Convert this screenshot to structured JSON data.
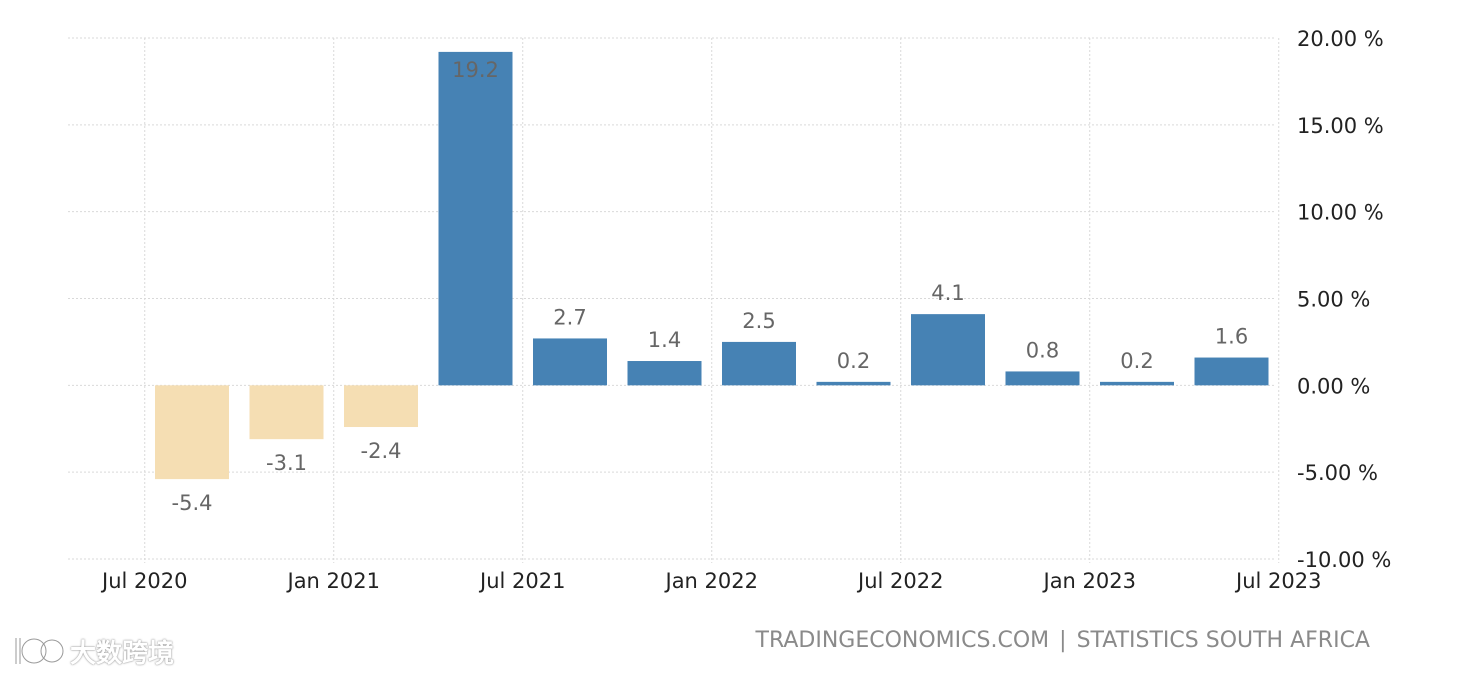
{
  "colors": {
    "positive": "#4682b4",
    "negative": "#f5deb3",
    "grid": "#d9d9d9",
    "label": "#666666",
    "axis_text": "#222222",
    "source_text": "#8a8a8a"
  },
  "chart_data": {
    "type": "bar",
    "categories": [
      "Q3 2020",
      "Q4 2020",
      "Q1 2021",
      "Q2 2021",
      "Q3 2021",
      "Q4 2021",
      "Q1 2022",
      "Q2 2022",
      "Q3 2022",
      "Q4 2022",
      "Q1 2023",
      "Q2 2023"
    ],
    "values": [
      -5.4,
      -3.1,
      -2.4,
      19.2,
      2.7,
      1.4,
      2.5,
      0.2,
      4.1,
      0.8,
      0.2,
      1.6
    ],
    "data_labels": [
      "-5.4",
      "-3.1",
      "-2.4",
      "19.2",
      "2.7",
      "1.4",
      "2.5",
      "0.2",
      "4.1",
      "0.8",
      "0.2",
      "1.6"
    ],
    "x_ticks": [
      {
        "label": "Jul 2020",
        "position": -0.5
      },
      {
        "label": "Jan 2021",
        "position": 1.5
      },
      {
        "label": "Jul 2021",
        "position": 3.5
      },
      {
        "label": "Jan 2022",
        "position": 5.5
      },
      {
        "label": "Jul 2022",
        "position": 7.5
      },
      {
        "label": "Jan 2023",
        "position": 9.5
      },
      {
        "label": "Jul 2023",
        "position": 11.5
      }
    ],
    "y_ticks": [
      {
        "value": 20,
        "label": "20.00 %"
      },
      {
        "value": 15,
        "label": "15.00 %"
      },
      {
        "value": 10,
        "label": "10.00 %"
      },
      {
        "value": 5,
        "label": "5.00 %"
      },
      {
        "value": 0,
        "label": "0.00 %"
      },
      {
        "value": -5,
        "label": "-5.00 %"
      },
      {
        "value": -10,
        "label": "-10.00 %"
      }
    ],
    "ylim": [
      -10,
      20
    ],
    "y_axis_side": "right",
    "grid": true,
    "legend": false,
    "title": "",
    "xlabel": "",
    "ylabel": ""
  },
  "footer": {
    "source_site": "TRADINGECONOMICS.COM",
    "separator": "|",
    "source_agency": "STATISTICS SOUTH AFRICA"
  },
  "watermark": {
    "text": "大数跨境",
    "icon": "chat-bubble-logo-icon"
  }
}
